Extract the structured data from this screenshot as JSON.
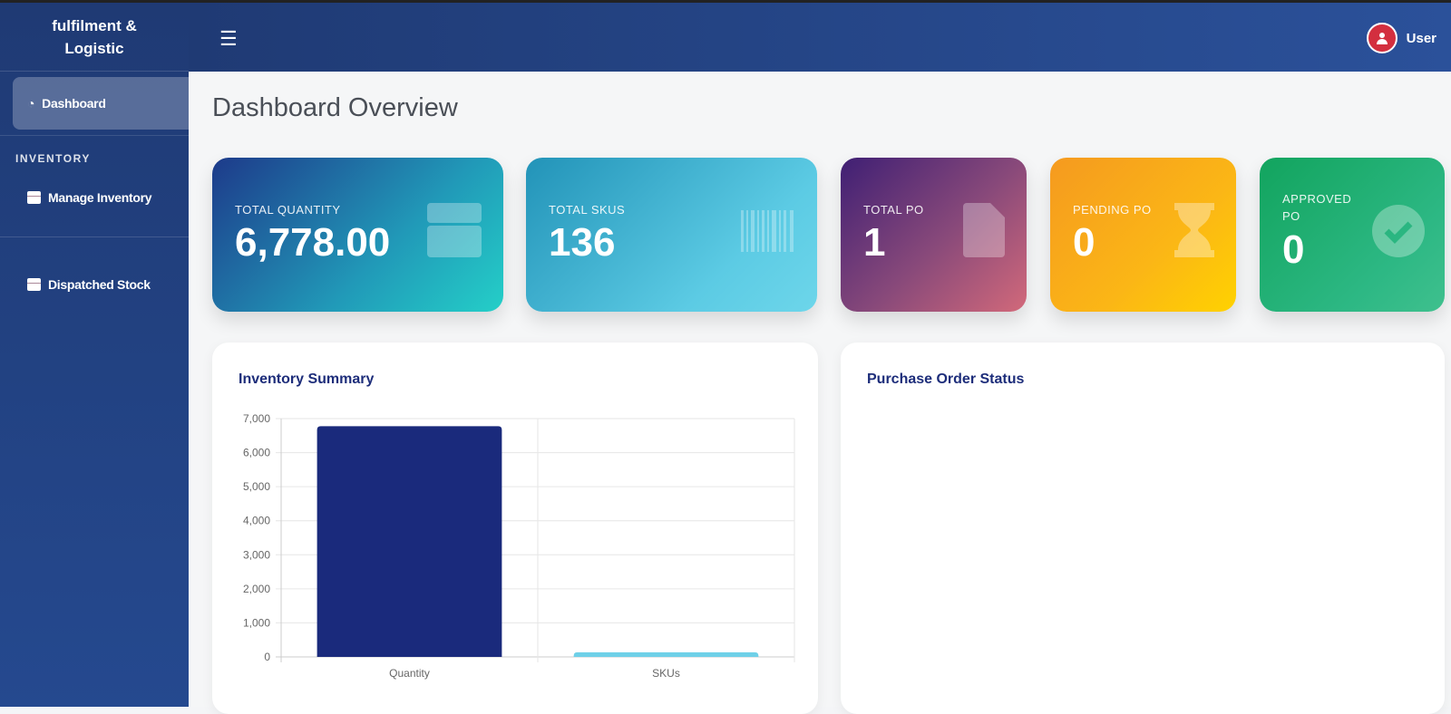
{
  "brand": {
    "line1": "fulfilment &",
    "line2": "Logistic"
  },
  "sidebar": {
    "dashboard": "Dashboard",
    "section": "INVENTORY",
    "items": [
      {
        "label": "Manage Inventory"
      },
      {
        "label": "Dispatched Stock"
      }
    ]
  },
  "header": {
    "user": "User"
  },
  "page_title": "Dashboard Overview",
  "cards": [
    {
      "label": "TOTAL QUANTITY",
      "value": "6,778.00",
      "icon": "box-icon"
    },
    {
      "label": "TOTAL SKUS",
      "value": "136",
      "icon": "barcode-icon"
    },
    {
      "label": "TOTAL PO",
      "value": "1",
      "icon": "file-invoice-icon"
    },
    {
      "label": "PENDING PO",
      "value": "0",
      "icon": "hourglass-icon"
    },
    {
      "label": "APPROVED PO",
      "value": "0",
      "icon": "check-circle-icon"
    }
  ],
  "panels": {
    "inventory": "Inventory Summary",
    "po": "Purchase Order Status"
  },
  "chart_data": {
    "type": "bar",
    "title": "Inventory Summary",
    "categories": [
      "Quantity",
      "SKUs"
    ],
    "values": [
      6778,
      136
    ],
    "ylim": [
      0,
      7000
    ],
    "yticks": [
      "0",
      "1,000",
      "2,000",
      "3,000",
      "4,000",
      "5,000",
      "6,000",
      "7,000"
    ],
    "colors": [
      "#1a2a7c",
      "#6fd0e8"
    ],
    "grid": true
  }
}
